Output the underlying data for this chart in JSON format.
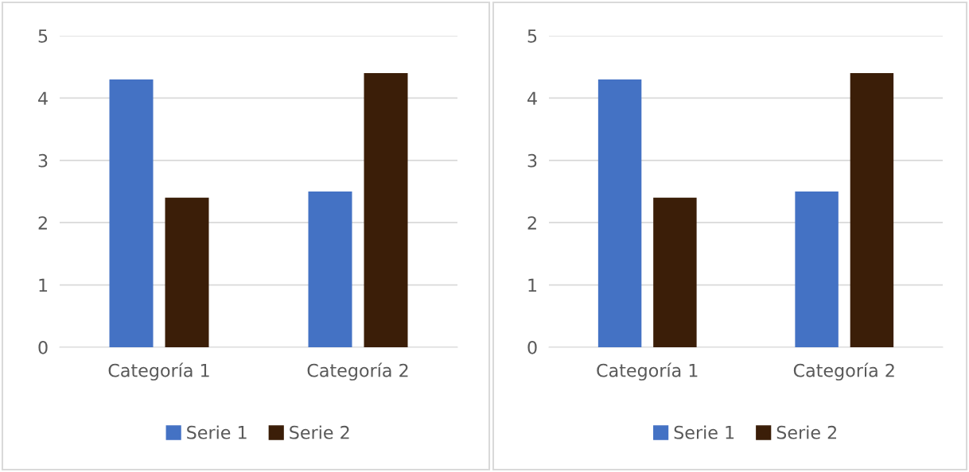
{
  "chart_data": [
    {
      "type": "bar",
      "categories": [
        "Categoría 1",
        "Categoría 2"
      ],
      "series": [
        {
          "name": "Serie 1",
          "color": "#4472c4",
          "values": [
            4.3,
            2.5
          ]
        },
        {
          "name": "Serie 2",
          "color": "#3b1e08",
          "values": [
            2.4,
            4.4
          ]
        }
      ],
      "ylim": [
        0,
        5
      ],
      "yticks": [
        0,
        1,
        2,
        3,
        4,
        5
      ],
      "grid": "y",
      "legend": "bottom"
    },
    {
      "type": "bar",
      "categories": [
        "Categoría 1",
        "Categoría 2"
      ],
      "series": [
        {
          "name": "Serie 1",
          "color": "#4472c4",
          "values": [
            4.3,
            2.5
          ]
        },
        {
          "name": "Serie 2",
          "color": "#3b1e08",
          "values": [
            2.4,
            4.4
          ]
        }
      ],
      "ylim": [
        0,
        5
      ],
      "yticks": [
        0,
        1,
        2,
        3,
        4,
        5
      ],
      "grid": "y",
      "legend": "bottom"
    }
  ]
}
